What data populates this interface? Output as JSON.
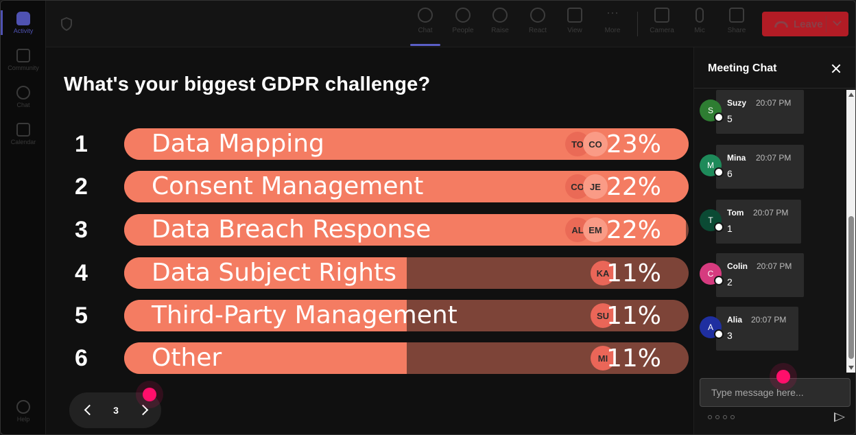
{
  "rail": {
    "items": [
      {
        "label": "Activity",
        "icon": "bell-icon"
      },
      {
        "label": "Community",
        "icon": "community-icon"
      },
      {
        "label": "Chat",
        "icon": "chat-icon"
      },
      {
        "label": "Calendar",
        "icon": "calendar-icon"
      }
    ],
    "help": {
      "label": "Help",
      "icon": "help-icon"
    }
  },
  "toolbar": {
    "items": [
      {
        "label": "Chat",
        "icon": "chat-icon"
      },
      {
        "label": "People",
        "icon": "people-icon"
      },
      {
        "label": "Raise",
        "icon": "hand-icon"
      },
      {
        "label": "React",
        "icon": "smiley-icon"
      },
      {
        "label": "View",
        "icon": "grid-icon"
      },
      {
        "label": "More",
        "icon": "more-icon"
      },
      {
        "label": "Camera",
        "icon": "camera-off-icon"
      },
      {
        "label": "Mic",
        "icon": "mic-icon"
      },
      {
        "label": "Share",
        "icon": "share-icon"
      }
    ],
    "leave_label": "Leave",
    "leave_color": "#b21c25"
  },
  "poll": {
    "question": "What's your biggest GDPR challenge?",
    "bar_color": "#f47c62",
    "track_color": "#7d4438",
    "options": [
      {
        "num": "1",
        "label": "Data Mapping",
        "percent": "23%",
        "fill": 100,
        "avatars": [
          "TO",
          "CO"
        ]
      },
      {
        "num": "2",
        "label": "Consent Management",
        "percent": "22%",
        "fill": 100,
        "avatars": [
          "CO",
          "JE"
        ]
      },
      {
        "num": "3",
        "label": "Data Breach Response",
        "percent": "22%",
        "fill": 99.5,
        "avatars": [
          "AL",
          "EM"
        ]
      },
      {
        "num": "4",
        "label": "Data Subject Rights",
        "percent": "11%",
        "fill": 50,
        "avatars": [
          "KA"
        ]
      },
      {
        "num": "5",
        "label": "Third-Party Management",
        "percent": "11%",
        "fill": 50,
        "avatars": [
          "SU"
        ]
      },
      {
        "num": "6",
        "label": "Other",
        "percent": "11%",
        "fill": 50,
        "avatars": [
          "MI"
        ]
      }
    ]
  },
  "pager": {
    "page": "3"
  },
  "chat": {
    "title": "Meeting Chat",
    "input_placeholder": "Type message here...",
    "messages": [
      {
        "initial": "S",
        "name": "Suzy",
        "time": "20:07 PM",
        "text": "5",
        "color": "#2e7d32"
      },
      {
        "initial": "M",
        "name": "Mina",
        "time": "20:07 PM",
        "text": "6",
        "color": "#1e8a5a"
      },
      {
        "initial": "T",
        "name": "Tom",
        "time": "20:07 PM",
        "text": "1",
        "color": "#0b4a34"
      },
      {
        "initial": "C",
        "name": "Colin",
        "time": "20:07 PM",
        "text": "2",
        "color": "#d63b7f"
      },
      {
        "initial": "A",
        "name": "Alia",
        "time": "20:07 PM",
        "text": "3",
        "color": "#1f2fa0"
      }
    ]
  }
}
